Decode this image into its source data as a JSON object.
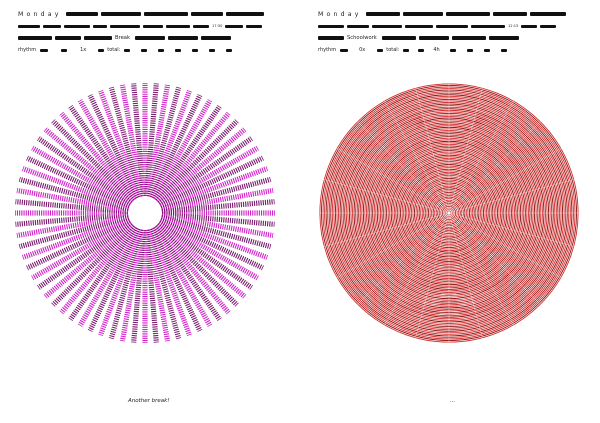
{
  "pages": [
    {
      "day": "Monday",
      "activity": "Break",
      "rhythm_label": "rhythm",
      "total_label": "total:",
      "count": "1x",
      "small_text": "17:30",
      "caption": "Another break!",
      "pattern": "radial-spokes",
      "colors": {
        "primary": "#d020c8",
        "secondary": "#7a1a6e"
      }
    },
    {
      "day": "Monday",
      "activity": "Schoolwork",
      "rhythm_label": "rhythm",
      "total_label": "total:",
      "count": "0x",
      "hours": "4h",
      "small_text": "12:15",
      "caption": "...",
      "pattern": "concentric-rings",
      "colors": {
        "primary": "#d42a2a",
        "secondary": "#8a1010"
      }
    }
  ]
}
